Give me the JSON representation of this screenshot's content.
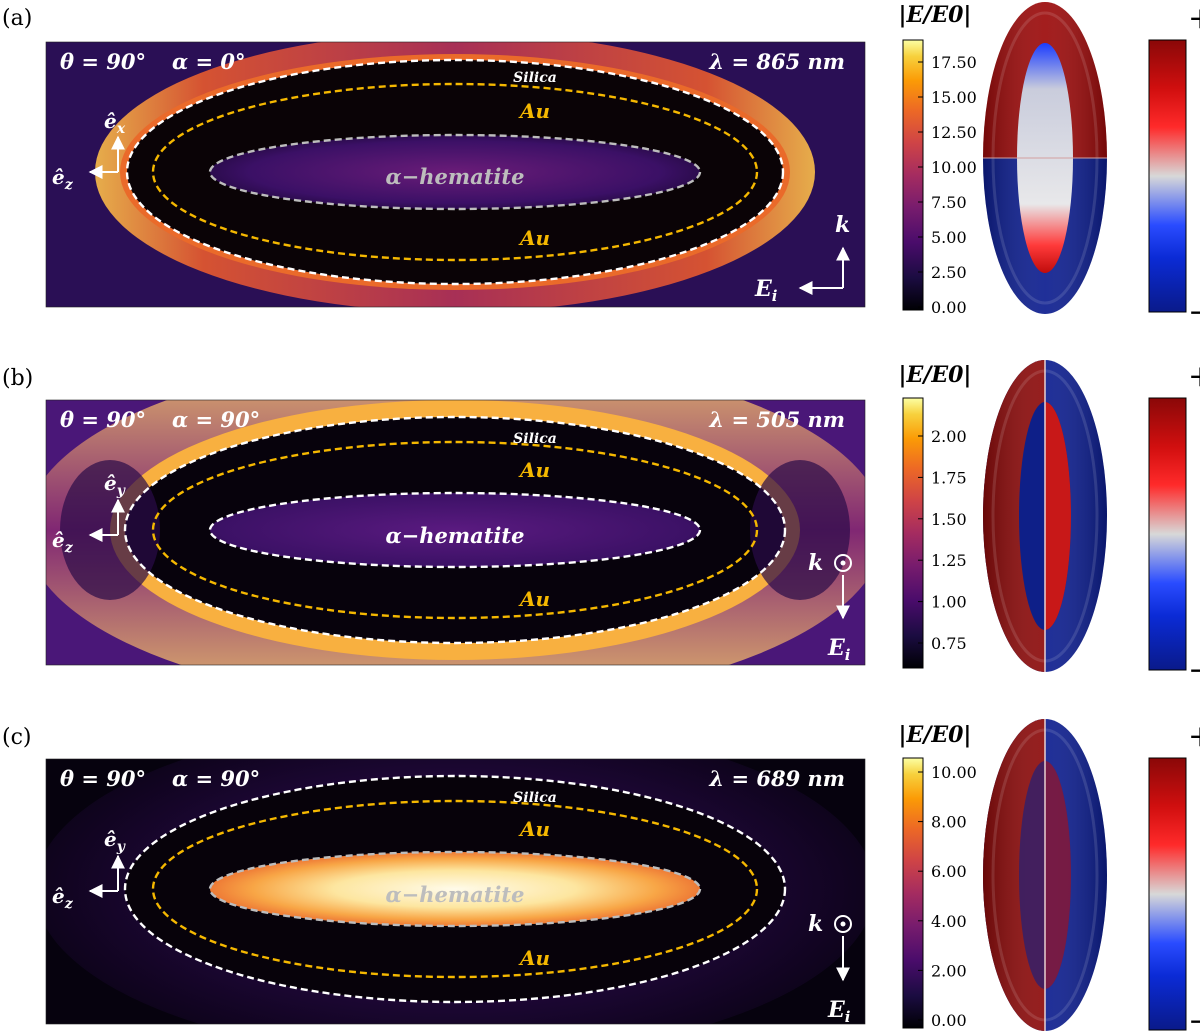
{
  "panels": [
    {
      "id": "a",
      "panel_label": "(a)",
      "theta": "θ = 90°",
      "alpha": "α = 0°",
      "wavelength": "λ = 865 nm",
      "axis_up": "ê",
      "axis_up_sub": "x",
      "axis_left": "ê",
      "axis_left_sub": "z",
      "k_label": "k",
      "e_label": "E",
      "e_sub": "i",
      "wave_config": "k-up-E-left",
      "layers": {
        "shell_outer": "Silica",
        "shell_top": "Au",
        "shell_bottom": "Au",
        "core": "α−hematite"
      },
      "core_label_color": "#bdbdbd",
      "field_map": "outer-glow",
      "colorbar": {
        "title": "|E/E0|",
        "ticks": [
          "17.50",
          "15.00",
          "12.50",
          "10.00",
          "7.50",
          "5.00",
          "2.50",
          "0.00"
        ]
      },
      "charge": {
        "split": "horizontal",
        "top": "#9b0a0a",
        "bottom": "#0c1d8f",
        "core": "gradient-red-white-blue"
      },
      "charge_bar": {
        "plus": "+",
        "minus": "−"
      }
    },
    {
      "id": "b",
      "panel_label": "(b)",
      "theta": "θ = 90°",
      "alpha": "α = 90°",
      "wavelength": "λ = 505 nm",
      "axis_up": "ê",
      "axis_up_sub": "y",
      "axis_left": "ê",
      "axis_left_sub": "z",
      "k_label": "k",
      "e_label": "E",
      "e_sub": "i",
      "wave_config": "k-dot-E-down",
      "layers": {
        "shell_outer": "Silica",
        "shell_top": "Au",
        "shell_bottom": "Au",
        "core": "α−hematite"
      },
      "core_label_color": "#ffffff",
      "field_map": "orange-edges",
      "colorbar": {
        "title": "|E/E0|",
        "ticks": [
          "2.00",
          "1.75",
          "1.50",
          "1.25",
          "1.00",
          "0.75"
        ]
      },
      "charge": {
        "split": "vertical",
        "left": "#8c0a0a",
        "right": "#0c1d8f",
        "core": "red-blue"
      },
      "charge_bar": {
        "plus": "+",
        "minus": "−"
      }
    },
    {
      "id": "c",
      "panel_label": "(c)",
      "theta": "θ = 90°",
      "alpha": "α = 90°",
      "wavelength": "λ = 689 nm",
      "axis_up": "ê",
      "axis_up_sub": "y",
      "axis_left": "ê",
      "axis_left_sub": "z",
      "k_label": "k",
      "e_label": "E",
      "e_sub": "i",
      "wave_config": "k-dot-E-down",
      "layers": {
        "shell_outer": "Silica",
        "shell_top": "Au",
        "shell_bottom": "Au",
        "core": "α−hematite"
      },
      "core_label_color": "#bdbdbd",
      "field_map": "bright-core",
      "colorbar": {
        "title": "|E/E0|",
        "ticks": [
          "10.00",
          "8.00",
          "6.00",
          "4.00",
          "2.00",
          "0.00"
        ]
      },
      "charge": {
        "split": "vertical",
        "left": "#8c0a0a",
        "right": "#0c1d8f",
        "core": "red-blue"
      },
      "charge_bar": {
        "plus": "+",
        "minus": "−"
      }
    }
  ]
}
